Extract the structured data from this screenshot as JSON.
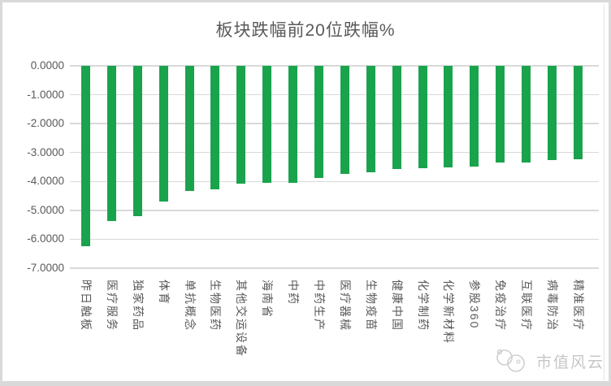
{
  "watermark": {
    "text": "市值风云"
  },
  "colors": {
    "bar": "#1AA34D",
    "gridline": "#D9D9D9",
    "axis_text": "#595959",
    "title_text": "#595959",
    "watermark_text": "#C6C6C6",
    "watermark_logo": "#CFCFCF",
    "frame": "#D9D9D9"
  },
  "chart_data": {
    "type": "bar",
    "title": "板块跌幅前20位跌幅%",
    "xlabel": "",
    "ylabel": "",
    "ylim": [
      -7,
      0
    ],
    "grid": true,
    "legend": "none",
    "bar_orientation": "vertical-negative",
    "yticks_labels": [
      "0.0000",
      "-1.0000",
      "-2.0000",
      "-3.0000",
      "-4.0000",
      "-5.0000",
      "-6.0000",
      "-7.0000"
    ],
    "yticks_values": [
      0,
      -1,
      -2,
      -3,
      -4,
      -5,
      -6,
      -7
    ],
    "categories": [
      "昨日触板",
      "医疗服务",
      "独家药品",
      "体育",
      "单抗概念",
      "生物医药",
      "其他交运设备",
      "海南省",
      "中药",
      "中药生产",
      "医疗器械",
      "生物疫苗",
      "健康中国",
      "化学制药",
      "化学新材料",
      "参股360",
      "免疫治疗",
      "互联医疗",
      "病毒防治",
      "精准医疗"
    ],
    "values": [
      -6.24,
      -5.36,
      -5.19,
      -4.7,
      -4.33,
      -4.28,
      -4.08,
      -4.06,
      -4.04,
      -3.87,
      -3.73,
      -3.68,
      -3.56,
      -3.55,
      -3.52,
      -3.5,
      -3.35,
      -3.34,
      -3.27,
      -3.24
    ]
  }
}
